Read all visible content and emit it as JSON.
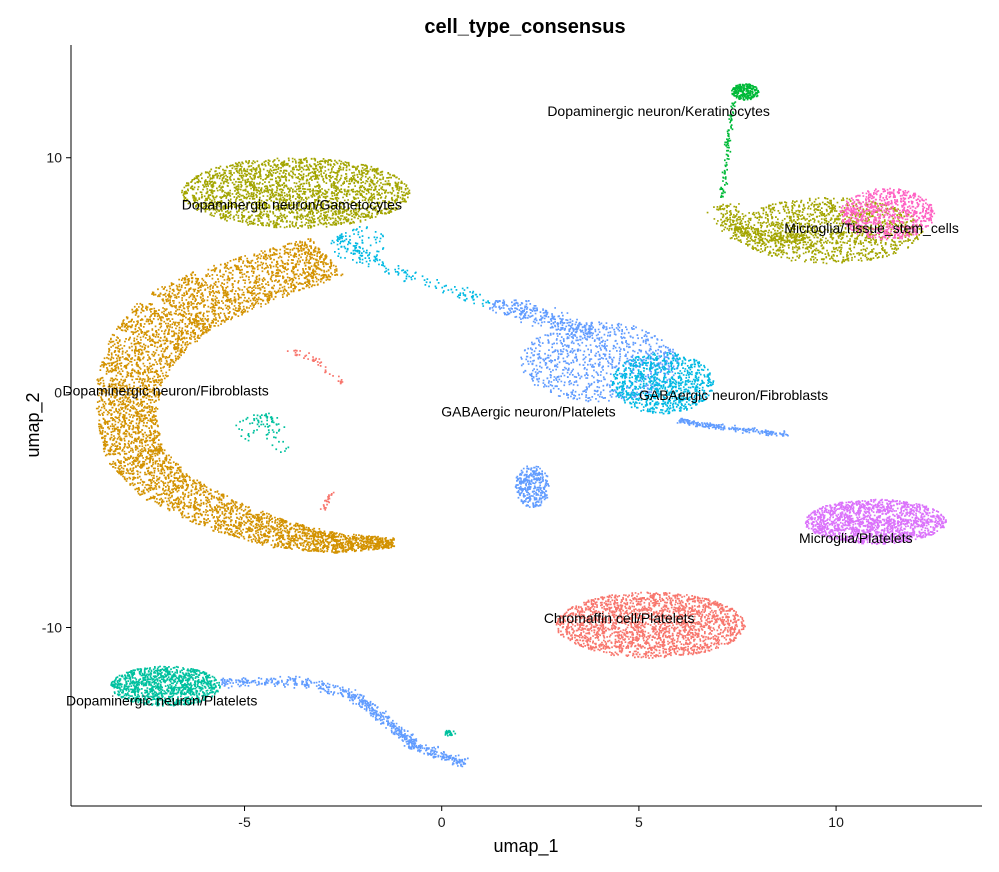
{
  "chart_data": {
    "type": "scatter",
    "title": "cell_type_consensus",
    "xlabel": "umap_1",
    "ylabel": "umap_2",
    "xlim": [
      -9.4,
      13.7
    ],
    "ylim": [
      -17.6,
      14.8
    ],
    "xticks": [
      -5,
      0,
      5,
      10
    ],
    "yticks": [
      -10,
      0,
      10
    ],
    "grid": false,
    "legend": "none",
    "colors": {
      "red": "#F8766D",
      "olive": "#A3A500",
      "gold": "#D39200",
      "green": "#00BA38",
      "teal": "#00C19F",
      "cyan": "#00B9E3",
      "blue": "#619CFF",
      "magenta": "#FF61C3",
      "violet": "#DB72FB"
    },
    "clusters": [
      {
        "label": "Dopaminergic neuron/Gametocytes",
        "label_x": -3.8,
        "label_y": 8.0,
        "color": "olive"
      },
      {
        "label": "Dopaminergic neuron/Fibroblasts",
        "label_x": -7.0,
        "label_y": 0.1,
        "color": "gold"
      },
      {
        "label": "Dopaminergic neuron/Keratinocytes",
        "label_x": 5.5,
        "label_y": 12.0,
        "color": "green"
      },
      {
        "label": "Microglia/Tissue_stem_cells",
        "label_x": 10.9,
        "label_y": 7.0,
        "color": "magenta"
      },
      {
        "label": "GABAergic neuron/Platelets",
        "label_x": 2.2,
        "label_y": -0.8,
        "color": "blue"
      },
      {
        "label": "GABAergic neuron/Fibroblasts",
        "label_x": 7.4,
        "label_y": -0.1,
        "color": "cyan"
      },
      {
        "label": "Microglia/Platelets",
        "label_x": 10.5,
        "label_y": -6.2,
        "color": "violet"
      },
      {
        "label": "Chromaffin cell/Platelets",
        "label_x": 4.5,
        "label_y": -9.6,
        "color": "red"
      },
      {
        "label": "Dopaminergic neuron/Platelets",
        "label_x": -7.1,
        "label_y": -13.1,
        "color": "teal"
      }
    ],
    "point_groups": [
      {
        "color": "gold",
        "shape": "ribbon",
        "points": [
          [
            -2.9,
            5.8
          ],
          [
            -4.2,
            5.1
          ],
          [
            -5.6,
            4.3
          ],
          [
            -6.7,
            3.4
          ],
          [
            -7.4,
            2.2
          ],
          [
            -7.9,
            0.6
          ],
          [
            -8.0,
            -1.0
          ],
          [
            -7.8,
            -2.6
          ],
          [
            -7.0,
            -4.0
          ],
          [
            -5.6,
            -5.2
          ],
          [
            -4.2,
            -6.0
          ],
          [
            -2.8,
            -6.4
          ],
          [
            -1.2,
            -6.4
          ]
        ],
        "widths": [
          1.8,
          2.0,
          2.2,
          2.2,
          2.0,
          1.7,
          1.5,
          1.5,
          1.5,
          1.4,
          1.2,
          0.9,
          0.4
        ],
        "n": 5200
      },
      {
        "color": "olive",
        "shape": "blob",
        "cx": -3.7,
        "cy": 8.5,
        "rx": 2.9,
        "ry": 1.5,
        "n": 2300
      },
      {
        "color": "olive",
        "shape": "blob",
        "cx": 9.8,
        "cy": 6.9,
        "rx": 2.4,
        "ry": 1.4,
        "n": 1300
      },
      {
        "color": "olive",
        "shape": "curve",
        "points": [
          [
            7.1,
            8.0
          ],
          [
            7.4,
            6.9
          ],
          [
            8.4,
            6.5
          ],
          [
            9.2,
            6.6
          ]
        ],
        "spread": 0.35,
        "n": 300
      },
      {
        "color": "magenta",
        "shape": "blob",
        "cx": 11.3,
        "cy": 7.6,
        "rx": 1.2,
        "ry": 1.1,
        "n": 700
      },
      {
        "color": "violet",
        "shape": "blob",
        "cx": 11.0,
        "cy": -5.5,
        "rx": 1.8,
        "ry": 0.95,
        "n": 1500
      },
      {
        "color": "red",
        "shape": "blob",
        "cx": 5.3,
        "cy": -9.9,
        "rx": 2.4,
        "ry": 1.4,
        "n": 2100
      },
      {
        "color": "blue",
        "shape": "blob",
        "cx": 2.3,
        "cy": -4.0,
        "rx": 0.45,
        "ry": 0.9,
        "n": 320
      },
      {
        "color": "blue",
        "shape": "blob",
        "cx": 4.0,
        "cy": 1.3,
        "rx": 2.0,
        "ry": 1.7,
        "n": 900
      },
      {
        "color": "blue",
        "shape": "curve",
        "points": [
          [
            1.3,
            3.8
          ],
          [
            2.6,
            3.3
          ],
          [
            3.8,
            2.4
          ]
        ],
        "spread": 0.4,
        "n": 300
      },
      {
        "color": "blue",
        "shape": "curve",
        "points": [
          [
            6.0,
            -1.2
          ],
          [
            7.2,
            -1.5
          ],
          [
            8.8,
            -1.8
          ]
        ],
        "spread": 0.12,
        "n": 220
      },
      {
        "color": "cyan",
        "shape": "blob",
        "cx": 5.6,
        "cy": 0.4,
        "rx": 1.3,
        "ry": 1.3,
        "n": 850
      },
      {
        "color": "cyan",
        "shape": "curve",
        "points": [
          [
            -2.7,
            6.6
          ],
          [
            -1.5,
            5.4
          ],
          [
            0.0,
            4.5
          ],
          [
            1.2,
            3.8
          ]
        ],
        "spread": 0.25,
        "n": 160
      },
      {
        "color": "cyan",
        "shape": "blob",
        "cx": -2.1,
        "cy": 6.3,
        "rx": 0.7,
        "ry": 0.8,
        "n": 80
      },
      {
        "color": "green",
        "shape": "blob",
        "cx": 7.7,
        "cy": 12.8,
        "rx": 0.35,
        "ry": 0.35,
        "n": 240
      },
      {
        "color": "green",
        "shape": "curve",
        "points": [
          [
            7.4,
            12.4
          ],
          [
            7.3,
            11.0
          ],
          [
            7.2,
            9.5
          ],
          [
            7.1,
            8.3
          ]
        ],
        "spread": 0.08,
        "n": 90
      },
      {
        "color": "teal",
        "shape": "blob",
        "cx": -7.0,
        "cy": -12.5,
        "rx": 1.4,
        "ry": 0.85,
        "n": 1100
      },
      {
        "color": "blue",
        "shape": "curve",
        "points": [
          [
            -5.6,
            -12.3
          ],
          [
            -3.6,
            -12.3
          ],
          [
            -2.2,
            -12.9
          ],
          [
            -1.4,
            -14.0
          ],
          [
            -0.6,
            -15.1
          ],
          [
            0.6,
            -15.8
          ]
        ],
        "spread": 0.2,
        "n": 650
      },
      {
        "color": "teal",
        "shape": "curve",
        "points": [
          [
            -4.5,
            -0.9
          ],
          [
            -4.3,
            -1.5
          ],
          [
            -4.0,
            -2.6
          ]
        ],
        "spread": 0.25,
        "n": 40
      },
      {
        "color": "teal",
        "shape": "blob",
        "cx": -4.7,
        "cy": -1.5,
        "rx": 0.6,
        "ry": 0.6,
        "n": 40
      },
      {
        "color": "red",
        "shape": "curve",
        "points": [
          [
            -4.0,
            1.9
          ],
          [
            -3.2,
            1.4
          ],
          [
            -2.5,
            0.4
          ]
        ],
        "spread": 0.12,
        "n": 45
      },
      {
        "color": "red",
        "shape": "curve",
        "points": [
          [
            -2.8,
            -4.2
          ],
          [
            -3.0,
            -5.0
          ]
        ],
        "spread": 0.1,
        "n": 25
      },
      {
        "color": "teal",
        "shape": "blob",
        "cx": 0.2,
        "cy": -14.5,
        "rx": 0.15,
        "ry": 0.12,
        "n": 25
      }
    ]
  }
}
